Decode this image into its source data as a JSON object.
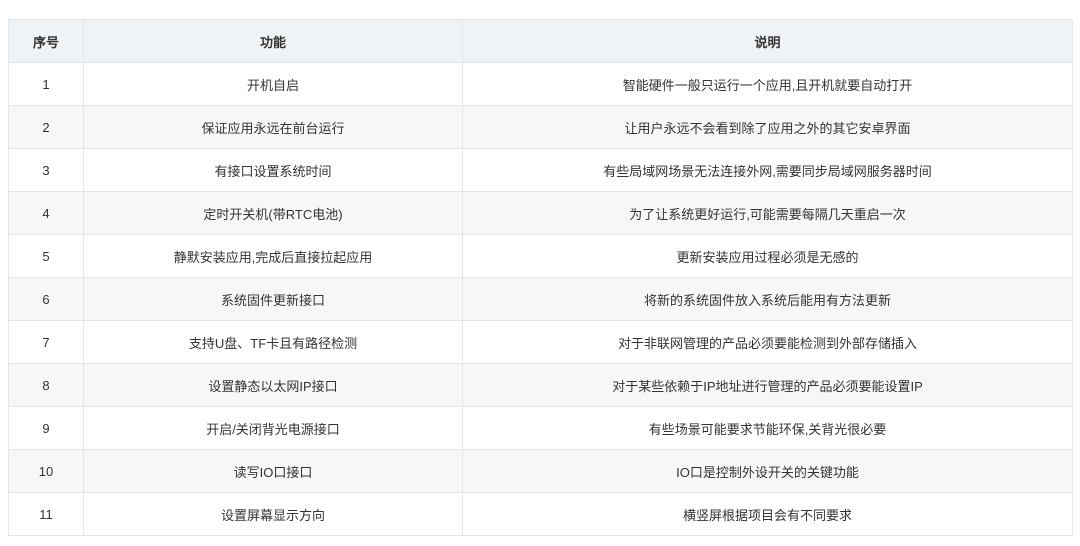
{
  "table": {
    "headers": [
      "序号",
      "功能",
      "说明"
    ],
    "rows": [
      [
        "1",
        "开机自启",
        "智能硬件一般只运行一个应用,且开机就要自动打开"
      ],
      [
        "2",
        "保证应用永远在前台运行",
        "让用户永远不会看到除了应用之外的其它安卓界面"
      ],
      [
        "3",
        "有接口设置系统时间",
        "有些局域网场景无法连接外网,需要同步局域网服务器时间"
      ],
      [
        "4",
        "定时开关机(带RTC电池)",
        "为了让系统更好运行,可能需要每隔几天重启一次"
      ],
      [
        "5",
        "静默安装应用,完成后直接拉起应用",
        "更新安装应用过程必须是无感的"
      ],
      [
        "6",
        "系统固件更新接口",
        "将新的系统固件放入系统后能用有方法更新"
      ],
      [
        "7",
        "支持U盘、TF卡且有路径检测",
        "对于非联网管理的产品必须要能检测到外部存储插入"
      ],
      [
        "8",
        "设置静态以太网IP接口",
        "对于某些依赖于IP地址进行管理的产品必须要能设置IP"
      ],
      [
        "9",
        "开启/关闭背光电源接口",
        "有些场景可能要求节能环保,关背光很必要"
      ],
      [
        "10",
        "读写IO口接口",
        "IO口是控制外设开关的关键功能"
      ],
      [
        "11",
        "设置屏幕显示方向",
        "横竖屏根据项目会有不同要求"
      ]
    ]
  }
}
